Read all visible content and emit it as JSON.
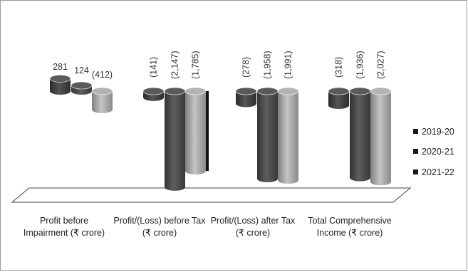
{
  "chart_data": {
    "type": "bar",
    "style": "3d-cylinder",
    "categories": [
      "Profit before Impairment (₹ crore)",
      "Profit/(Loss) before Tax (₹ crore)",
      "Profit/(Loss) after Tax (₹ crore)",
      "Total Comprehensive Income (₹ crore)"
    ],
    "series": [
      {
        "name": "2019-20",
        "values": [
          281,
          -141,
          -278,
          -318
        ],
        "labels": [
          "281",
          "(141)",
          "(278)",
          "(318)"
        ],
        "color": "#3a3a3a"
      },
      {
        "name": "2020-21",
        "values": [
          124,
          -2147,
          -1958,
          -1936
        ],
        "labels": [
          "124",
          "(2,147)",
          "(1,958)",
          "(1,936)"
        ],
        "color": "#4a4a4a"
      },
      {
        "name": "2021-22",
        "values": [
          -412,
          -1785,
          -1991,
          -2027
        ],
        "labels": [
          "(412)",
          "(1,785)",
          "(1,991)",
          "(2,027)"
        ],
        "color": "#9a9a9a"
      }
    ],
    "legend": "right",
    "grid": false
  }
}
